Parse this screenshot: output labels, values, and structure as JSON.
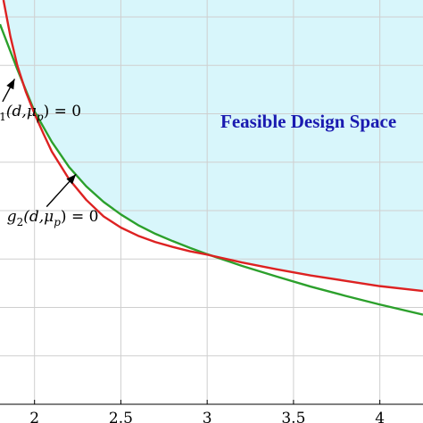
{
  "chart_data": {
    "type": "line",
    "title": "",
    "xlabel": "",
    "ylabel": "",
    "xlim": [
      1.8,
      4.25
    ],
    "ylim": [
      0,
      8.35
    ],
    "x_ticks": [
      2,
      2.5,
      3,
      3.5,
      4
    ],
    "x_tick_labels": [
      "2",
      "2.5",
      "3",
      "3.5",
      "4"
    ],
    "y_gridlines": [
      1,
      2,
      3,
      4,
      5,
      6,
      7,
      8
    ],
    "grid": true,
    "region": {
      "label": "Feasible Design Space",
      "color": "#d8f6fb",
      "label_color": "#1a1ab0"
    },
    "series": [
      {
        "color": "#2ca02c",
        "x": [
          1.8,
          1.9,
          2.0,
          2.1,
          2.2,
          2.3,
          2.4,
          2.5,
          2.6,
          2.7,
          2.8,
          2.9,
          3.0,
          3.2,
          3.4,
          3.6,
          3.8,
          4.0,
          4.25
        ],
        "y": [
          7.85,
          6.92,
          6.05,
          5.42,
          4.9,
          4.5,
          4.18,
          3.92,
          3.7,
          3.52,
          3.37,
          3.23,
          3.1,
          2.86,
          2.64,
          2.43,
          2.24,
          2.06,
          1.85
        ]
      },
      {
        "color": "#dd2222",
        "x": [
          1.82,
          1.86,
          1.9,
          1.95,
          2.0,
          2.05,
          2.1,
          2.2,
          2.3,
          2.4,
          2.5,
          2.6,
          2.7,
          2.8,
          2.9,
          3.0,
          3.2,
          3.4,
          3.6,
          3.8,
          4.0,
          4.25
        ],
        "y": [
          8.35,
          7.6,
          7.0,
          6.45,
          6.0,
          5.6,
          5.22,
          4.65,
          4.22,
          3.88,
          3.65,
          3.48,
          3.35,
          3.25,
          3.16,
          3.09,
          2.93,
          2.79,
          2.66,
          2.55,
          2.44,
          2.34
        ]
      }
    ],
    "annotations": [
      {
        "func": "g",
        "sub": "1",
        "args": "(d,μ",
        "argsub": "p",
        "rhs": ") = 0",
        "color": "#2ca02c",
        "text_x": 1.74,
        "text_y": 5.95,
        "arrow_from": [
          1.815,
          6.25
        ],
        "arrow_to": [
          1.885,
          6.72
        ]
      },
      {
        "func": "g",
        "sub": "2",
        "args": "(d,μ",
        "argsub": "p",
        "rhs": ") = 0",
        "color": "#dd2222",
        "text_x": 1.84,
        "text_y": 3.78,
        "arrow_from": [
          2.07,
          4.08
        ],
        "arrow_to": [
          2.24,
          4.75
        ]
      }
    ]
  }
}
